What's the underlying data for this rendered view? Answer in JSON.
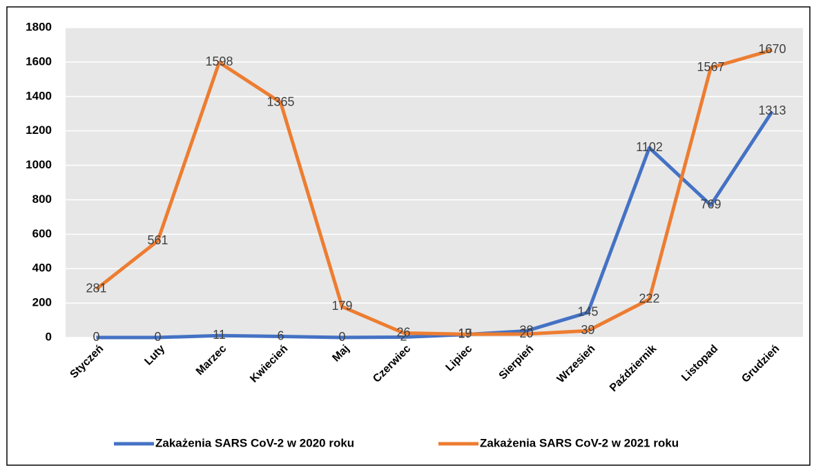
{
  "chart_data": {
    "type": "line",
    "categories": [
      "Styczeń",
      "Luty",
      "Marzec",
      "Kwiecień",
      "Maj",
      "Czerwiec",
      "Lipiec",
      "Sierpień",
      "Wrzesień",
      "Październik",
      "Listopad",
      "Grudzień"
    ],
    "series": [
      {
        "name": "Zakażenia SARS CoV-2 w 2020 roku",
        "color": "#4472c4",
        "values": [
          0,
          0,
          11,
          6,
          0,
          2,
          17,
          38,
          145,
          1102,
          769,
          1313
        ]
      },
      {
        "name": "Zakażenia SARS CoV-2 w 2021 roku",
        "color": "#ed7d31",
        "values": [
          281,
          561,
          1598,
          1365,
          179,
          26,
          19,
          20,
          39,
          222,
          1567,
          1670
        ]
      }
    ],
    "ylim": [
      0,
      1800
    ],
    "yticks": [
      0,
      200,
      400,
      600,
      800,
      1000,
      1200,
      1400,
      1600,
      1800
    ],
    "grid": true
  }
}
